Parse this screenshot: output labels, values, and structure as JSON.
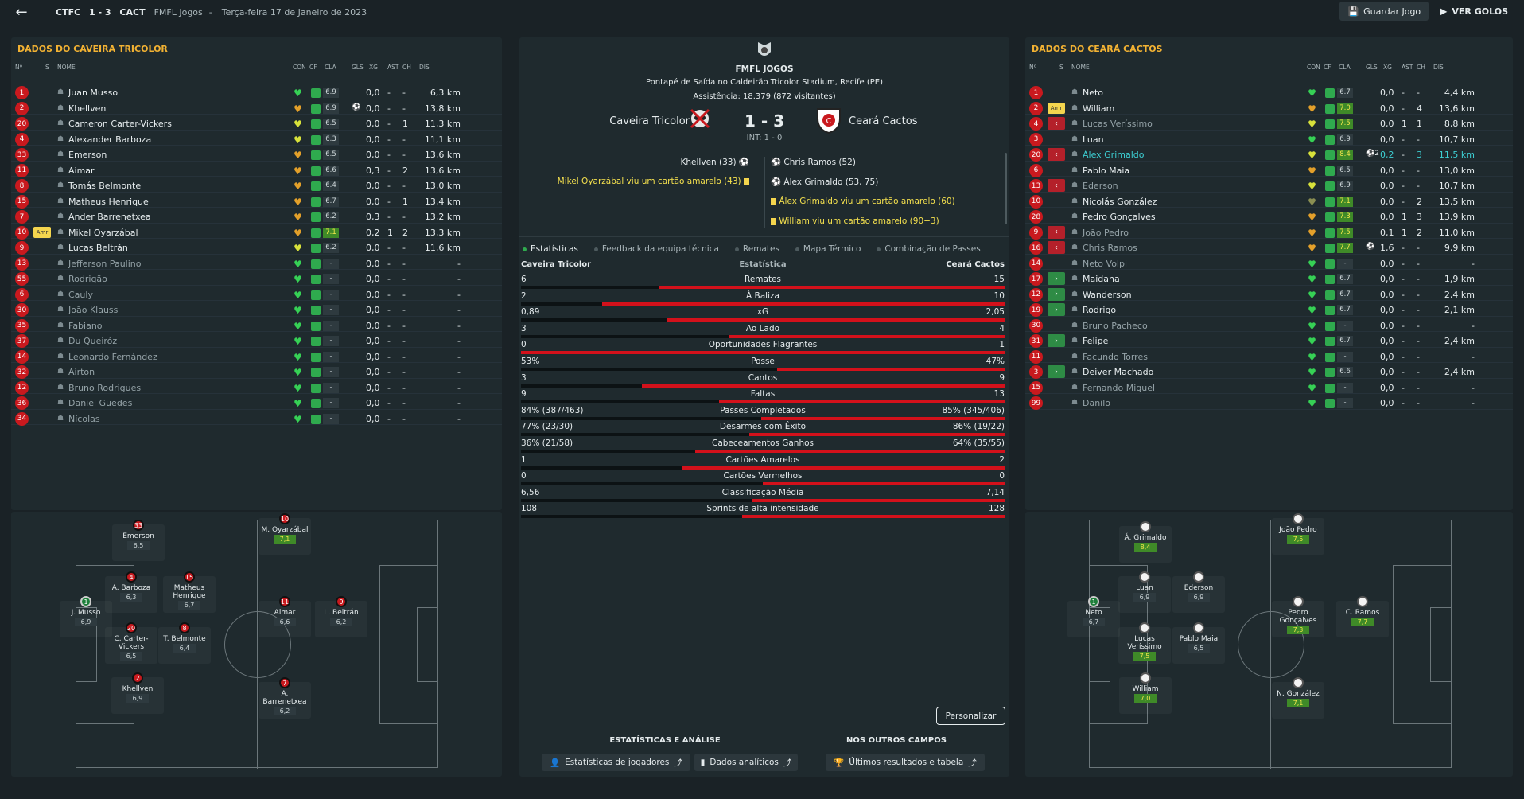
{
  "topbar": {
    "home_abbr": "CTFC",
    "score": "1 - 3",
    "away_abbr": "CACT",
    "competition": "FMFL Jogos",
    "sep": "-",
    "date": "Terça-feira 17 de Janeiro de 2023",
    "save_label": "Guardar Jogo",
    "goals_label": "VER GOLOS"
  },
  "headers": {
    "no": "Nº",
    "s": "S",
    "name": "NOME",
    "con": "CON",
    "cf": "CF",
    "cla": "CLA",
    "gls": "GLS",
    "xg": "XG",
    "ast": "AST",
    "ch": "CH",
    "dis": "DIS"
  },
  "home": {
    "title": "DADOS DO CAVEIRA TRICOLOR",
    "players": [
      {
        "no": "1",
        "name": "Juan Musso",
        "cla": "6.9",
        "gls": "",
        "xg": "0,0",
        "ast": "-",
        "ch": "-",
        "dis": "6,3 km",
        "cond": "g",
        "dim": false
      },
      {
        "no": "2",
        "name": "Khellven",
        "cla": "6.9",
        "gls": "⚽",
        "xg": "0,0",
        "ast": "-",
        "ch": "-",
        "dis": "13,8 km",
        "cond": "o",
        "dim": false
      },
      {
        "no": "20",
        "name": "Cameron Carter-Vickers",
        "cla": "6.5",
        "gls": "",
        "xg": "0,0",
        "ast": "-",
        "ch": "1",
        "dis": "11,3 km",
        "cond": "y",
        "dim": false
      },
      {
        "no": "4",
        "name": "Alexander Barboza",
        "cla": "6.3",
        "gls": "",
        "xg": "0,0",
        "ast": "-",
        "ch": "-",
        "dis": "11,1 km",
        "cond": "y",
        "dim": false
      },
      {
        "no": "33",
        "name": "Emerson",
        "cla": "6.5",
        "gls": "",
        "xg": "0,0",
        "ast": "-",
        "ch": "-",
        "dis": "13,6 km",
        "cond": "o",
        "dim": false
      },
      {
        "no": "11",
        "name": "Aimar",
        "cla": "6.6",
        "gls": "",
        "xg": "0,3",
        "ast": "-",
        "ch": "2",
        "dis": "13,6 km",
        "cond": "o",
        "dim": false
      },
      {
        "no": "8",
        "name": "Tomás Belmonte",
        "cla": "6.4",
        "gls": "",
        "xg": "0,0",
        "ast": "-",
        "ch": "-",
        "dis": "13,0 km",
        "cond": "o",
        "dim": false
      },
      {
        "no": "15",
        "name": "Matheus Henrique",
        "cla": "6.7",
        "gls": "",
        "xg": "0,0",
        "ast": "-",
        "ch": "1",
        "dis": "13,4 km",
        "cond": "o",
        "dim": false
      },
      {
        "no": "7",
        "name": "Ander Barrenetxea",
        "cla": "6.2",
        "gls": "",
        "xg": "0,3",
        "ast": "-",
        "ch": "-",
        "dis": "13,2 km",
        "cond": "o",
        "dim": false
      },
      {
        "no": "10",
        "name": "Mikel Oyarzábal",
        "cla": "7.1",
        "gls": "",
        "xg": "0,2",
        "ast": "1",
        "ch": "2",
        "dis": "13,3 km",
        "cond": "o",
        "dim": false,
        "card": "Amr",
        "hi": true
      },
      {
        "no": "9",
        "name": "Lucas Beltrán",
        "cla": "6.2",
        "gls": "",
        "xg": "0,0",
        "ast": "-",
        "ch": "-",
        "dis": "11,6 km",
        "cond": "y",
        "dim": false
      },
      {
        "no": "13",
        "name": "Jefferson Paulino",
        "cla": "-",
        "gls": "",
        "xg": "0,0",
        "ast": "-",
        "ch": "-",
        "dis": "-",
        "cond": "g",
        "dim": true
      },
      {
        "no": "55",
        "name": "Rodrigão",
        "cla": "-",
        "gls": "",
        "xg": "0,0",
        "ast": "-",
        "ch": "-",
        "dis": "-",
        "cond": "g",
        "dim": true
      },
      {
        "no": "6",
        "name": "Cauly",
        "cla": "-",
        "gls": "",
        "xg": "0,0",
        "ast": "-",
        "ch": "-",
        "dis": "-",
        "cond": "g",
        "dim": true
      },
      {
        "no": "30",
        "name": "João Klauss",
        "cla": "-",
        "gls": "",
        "xg": "0,0",
        "ast": "-",
        "ch": "-",
        "dis": "-",
        "cond": "g",
        "dim": true
      },
      {
        "no": "35",
        "name": "Fabiano",
        "cla": "-",
        "gls": "",
        "xg": "0,0",
        "ast": "-",
        "ch": "-",
        "dis": "-",
        "cond": "g",
        "dim": true
      },
      {
        "no": "37",
        "name": "Du Queiróz",
        "cla": "-",
        "gls": "",
        "xg": "0,0",
        "ast": "-",
        "ch": "-",
        "dis": "-",
        "cond": "g",
        "dim": true
      },
      {
        "no": "14",
        "name": "Leonardo Fernández",
        "cla": "-",
        "gls": "",
        "xg": "0,0",
        "ast": "-",
        "ch": "-",
        "dis": "-",
        "cond": "g",
        "dim": true
      },
      {
        "no": "32",
        "name": "Airton",
        "cla": "-",
        "gls": "",
        "xg": "0,0",
        "ast": "-",
        "ch": "-",
        "dis": "-",
        "cond": "g",
        "dim": true
      },
      {
        "no": "12",
        "name": "Bruno Rodrigues",
        "cla": "-",
        "gls": "",
        "xg": "0,0",
        "ast": "-",
        "ch": "-",
        "dis": "-",
        "cond": "g",
        "dim": true
      },
      {
        "no": "36",
        "name": "Daniel Guedes",
        "cla": "-",
        "gls": "",
        "xg": "0,0",
        "ast": "-",
        "ch": "-",
        "dis": "-",
        "cond": "g",
        "dim": true
      },
      {
        "no": "34",
        "name": "Nícolas",
        "cla": "-",
        "gls": "",
        "xg": "0,0",
        "ast": "-",
        "ch": "-",
        "dis": "-",
        "cond": "g",
        "dim": true
      }
    ],
    "pitch": [
      {
        "no": "33",
        "name": "Emerson",
        "rt": "6,5",
        "hi": false,
        "gk": false
      },
      {
        "no": "10",
        "name": "M. Oyarzábal",
        "rt": "7,1",
        "hi": true,
        "gk": false
      },
      {
        "no": "4",
        "name": "A. Barboza",
        "rt": "6,3",
        "hi": false,
        "gk": false
      },
      {
        "no": "15",
        "name": "Matheus Henrique",
        "rt": "6,7",
        "hi": false,
        "gk": false
      },
      {
        "no": "1",
        "name": "J. Musso",
        "rt": "6,9",
        "hi": false,
        "gk": true
      },
      {
        "no": "11",
        "name": "Aimar",
        "rt": "6,6",
        "hi": false,
        "gk": false
      },
      {
        "no": "9",
        "name": "L. Beltrán",
        "rt": "6,2",
        "hi": false,
        "gk": false
      },
      {
        "no": "20",
        "name": "C. Carter-Vickers",
        "rt": "6,5",
        "hi": false,
        "gk": false
      },
      {
        "no": "8",
        "name": "T. Belmonte",
        "rt": "6,4",
        "hi": false,
        "gk": false
      },
      {
        "no": "2",
        "name": "Khellven",
        "rt": "6,9",
        "hi": false,
        "gk": false
      },
      {
        "no": "7",
        "name": "A. Barrenetxea",
        "rt": "6,2",
        "hi": false,
        "gk": false
      }
    ]
  },
  "away": {
    "title": "DADOS DO CEARÁ CACTOS",
    "players": [
      {
        "no": "1",
        "name": "Neto",
        "cla": "6.7",
        "gls": "",
        "xg": "0,0",
        "ast": "-",
        "ch": "-",
        "dis": "4,4 km",
        "cond": "g",
        "dim": false
      },
      {
        "no": "2",
        "name": "William",
        "cla": "7.0",
        "gls": "",
        "xg": "0,0",
        "ast": "-",
        "ch": "4",
        "dis": "13,6 km",
        "cond": "o",
        "dim": false,
        "card": "Amr",
        "hi": true
      },
      {
        "no": "4",
        "name": "Lucas Veríssimo",
        "cla": "7.5",
        "gls": "",
        "xg": "0,0",
        "ast": "1",
        "ch": "1",
        "dis": "8,8 km",
        "cond": "y",
        "dim": true,
        "sub": "out",
        "hi": true
      },
      {
        "no": "3",
        "name": "Luan",
        "cla": "6.9",
        "gls": "",
        "xg": "0,0",
        "ast": "-",
        "ch": "-",
        "dis": "10,7 km",
        "cond": "g",
        "dim": false
      },
      {
        "no": "20",
        "name": "Álex Grimaldo",
        "cla": "8.4",
        "gls": "⚽2",
        "xg": "0,2",
        "ast": "-",
        "ch": "3",
        "dis": "11,5 km",
        "cond": "y",
        "dim": false,
        "sub": "out",
        "hi": true,
        "hl": true
      },
      {
        "no": "6",
        "name": "Pablo Maia",
        "cla": "6.5",
        "gls": "",
        "xg": "0,0",
        "ast": "-",
        "ch": "-",
        "dis": "13,0 km",
        "cond": "o",
        "dim": false
      },
      {
        "no": "13",
        "name": "Ederson",
        "cla": "6.9",
        "gls": "",
        "xg": "0,0",
        "ast": "-",
        "ch": "-",
        "dis": "10,7 km",
        "cond": "y",
        "dim": true,
        "sub": "out"
      },
      {
        "no": "10",
        "name": "Nicolás González",
        "cla": "7.1",
        "gls": "",
        "xg": "0,0",
        "ast": "-",
        "ch": "2",
        "dis": "13,5 km",
        "cond": "d",
        "dim": false,
        "hi": true
      },
      {
        "no": "28",
        "name": "Pedro Gonçalves",
        "cla": "7.3",
        "gls": "",
        "xg": "0,0",
        "ast": "1",
        "ch": "3",
        "dis": "13,9 km",
        "cond": "o",
        "dim": false,
        "hi": true
      },
      {
        "no": "9",
        "name": "João Pedro",
        "cla": "7.5",
        "gls": "",
        "xg": "0,1",
        "ast": "1",
        "ch": "2",
        "dis": "11,0 km",
        "cond": "o",
        "dim": true,
        "sub": "out",
        "hi": true
      },
      {
        "no": "16",
        "name": "Chris Ramos",
        "cla": "7.7",
        "gls": "⚽",
        "xg": "1,6",
        "ast": "-",
        "ch": "-",
        "dis": "9,9 km",
        "cond": "o",
        "dim": true,
        "sub": "out",
        "hi": true
      },
      {
        "no": "14",
        "name": "Neto Volpi",
        "cla": "-",
        "gls": "",
        "xg": "0,0",
        "ast": "-",
        "ch": "-",
        "dis": "-",
        "cond": "g",
        "dim": true
      },
      {
        "no": "17",
        "name": "Maidana",
        "cla": "6.7",
        "gls": "",
        "xg": "0,0",
        "ast": "-",
        "ch": "-",
        "dis": "1,9 km",
        "cond": "g",
        "dim": false,
        "sub": "in"
      },
      {
        "no": "12",
        "name": "Wanderson",
        "cla": "6.7",
        "gls": "",
        "xg": "0,0",
        "ast": "-",
        "ch": "-",
        "dis": "2,4 km",
        "cond": "g",
        "dim": false,
        "sub": "in"
      },
      {
        "no": "19",
        "name": "Rodrigo",
        "cla": "6.7",
        "gls": "",
        "xg": "0,0",
        "ast": "-",
        "ch": "-",
        "dis": "2,1 km",
        "cond": "g",
        "dim": false,
        "sub": "in"
      },
      {
        "no": "30",
        "name": "Bruno Pacheco",
        "cla": "-",
        "gls": "",
        "xg": "0,0",
        "ast": "-",
        "ch": "-",
        "dis": "-",
        "cond": "g",
        "dim": true
      },
      {
        "no": "31",
        "name": "Felipe",
        "cla": "6.7",
        "gls": "",
        "xg": "0,0",
        "ast": "-",
        "ch": "-",
        "dis": "2,4 km",
        "cond": "g",
        "dim": false,
        "sub": "in"
      },
      {
        "no": "11",
        "name": "Facundo Torres",
        "cla": "-",
        "gls": "",
        "xg": "0,0",
        "ast": "-",
        "ch": "-",
        "dis": "-",
        "cond": "g",
        "dim": true
      },
      {
        "no": "3",
        "name": "Deiver Machado",
        "cla": "6.6",
        "gls": "",
        "xg": "0,0",
        "ast": "-",
        "ch": "-",
        "dis": "2,4 km",
        "cond": "g",
        "dim": false,
        "sub": "in"
      },
      {
        "no": "15",
        "name": "Fernando Miguel",
        "cla": "-",
        "gls": "",
        "xg": "0,0",
        "ast": "-",
        "ch": "-",
        "dis": "-",
        "cond": "g",
        "dim": true
      },
      {
        "no": "99",
        "name": "Danilo",
        "cla": "-",
        "gls": "",
        "xg": "0,0",
        "ast": "-",
        "ch": "-",
        "dis": "-",
        "cond": "g",
        "dim": true
      }
    ],
    "pitch": [
      {
        "name": "Á. Grimaldo",
        "rt": "8,4",
        "hi": true,
        "gk": false
      },
      {
        "name": "João Pedro",
        "rt": "7,5",
        "hi": true,
        "gk": false
      },
      {
        "name": "Luan",
        "rt": "6,9",
        "hi": false,
        "gk": false
      },
      {
        "name": "Ederson",
        "rt": "6,9",
        "hi": false,
        "gk": false
      },
      {
        "no": "1",
        "name": "Neto",
        "rt": "6,7",
        "hi": false,
        "gk": true
      },
      {
        "name": "Pedro Gonçalves",
        "rt": "7,3",
        "hi": true,
        "gk": false
      },
      {
        "name": "C. Ramos",
        "rt": "7,7",
        "hi": true,
        "gk": false
      },
      {
        "name": "Lucas Veríssimo",
        "rt": "7,5",
        "hi": true,
        "gk": false
      },
      {
        "name": "Pablo Maia",
        "rt": "6,5",
        "hi": false,
        "gk": false
      },
      {
        "name": "William",
        "rt": "7,0",
        "hi": true,
        "gk": false
      },
      {
        "name": "N. González",
        "rt": "7,1",
        "hi": true,
        "gk": false
      }
    ]
  },
  "match": {
    "competition": "FMFL JOGOS",
    "venue": "Pontapé de Saída no Caldeirão Tricolor Stadium, Recife (PE)",
    "attendance": "Assistência: 18.379 (872 visitantes)",
    "home_team": "Caveira Tricolor",
    "away_team": "Ceará Cactos",
    "score": "1 - 3",
    "ht": "INT: 1 - 0",
    "home_events": [
      "Khellven (33)",
      "Mikel Oyarzábal viu um cartão amarelo (43)"
    ],
    "away_events": [
      "Chris Ramos (52)",
      "Álex Grimaldo (53, 75)",
      "Álex Grimaldo viu um cartão amarelo (60)",
      "William viu um cartão amarelo (90+3)"
    ]
  },
  "tabs": [
    "Estatísticas",
    "Feedback da equipa técnica",
    "Remates",
    "Mapa Térmico",
    "Combinação de Passes"
  ],
  "stats_header": {
    "home": "Caveira Tricolor",
    "mid": "Estatística",
    "away": "Ceará Cactos"
  },
  "stats": [
    {
      "label": "Remates",
      "home": "6",
      "away": "15",
      "home_frac": 0.286
    },
    {
      "label": "À Baliza",
      "home": "2",
      "away": "10",
      "home_frac": 0.167
    },
    {
      "label": "xG",
      "home": "0,89",
      "away": "2,05",
      "home_frac": 0.303
    },
    {
      "label": "Ao Lado",
      "home": "3",
      "away": "4",
      "home_frac": 0.429
    },
    {
      "label": "Oportunidades Flagrantes",
      "home": "0",
      "away": "1",
      "home_frac": 0.0
    },
    {
      "label": "Posse",
      "home": "53%",
      "away": "47%",
      "home_frac": 0.53
    },
    {
      "label": "Cantos",
      "home": "3",
      "away": "9",
      "home_frac": 0.25
    },
    {
      "label": "Faltas",
      "home": "9",
      "away": "13",
      "home_frac": 0.409
    },
    {
      "label": "Passes Completados",
      "home": "84% (387/463)",
      "away": "85% (345/406)",
      "home_frac": 0.497
    },
    {
      "label": "Desarmes com Êxito",
      "home": "77% (23/30)",
      "away": "86% (19/22)",
      "home_frac": 0.472
    },
    {
      "label": "Cabeceamentos Ganhos",
      "home": "36% (21/58)",
      "away": "64% (35/55)",
      "home_frac": 0.36
    },
    {
      "label": "Cartões Amarelos",
      "home": "1",
      "away": "2",
      "home_frac": 0.333
    },
    {
      "label": "Cartões Vermelhos",
      "home": "0",
      "away": "0",
      "home_frac": 0.5
    },
    {
      "label": "Classificação Média",
      "home": "6,56",
      "away": "7,14",
      "home_frac": 0.479
    },
    {
      "label": "Sprints de alta intensidade",
      "home": "108",
      "away": "128",
      "home_frac": 0.458
    }
  ],
  "footer": {
    "personalize": "Personalizar",
    "section1": "ESTATÍSTICAS E ANÁLISE",
    "section2": "NOS OUTROS CAMPOS",
    "btn_players": "Estatísticas de jogadores",
    "btn_analytics": "Dados analíticos",
    "btn_results": "Últimos resultados e tabela"
  },
  "colors": {
    "accent": "#f2b233",
    "red": "#d3111b",
    "green": "#2faa4e",
    "bg": "#1a2226"
  }
}
